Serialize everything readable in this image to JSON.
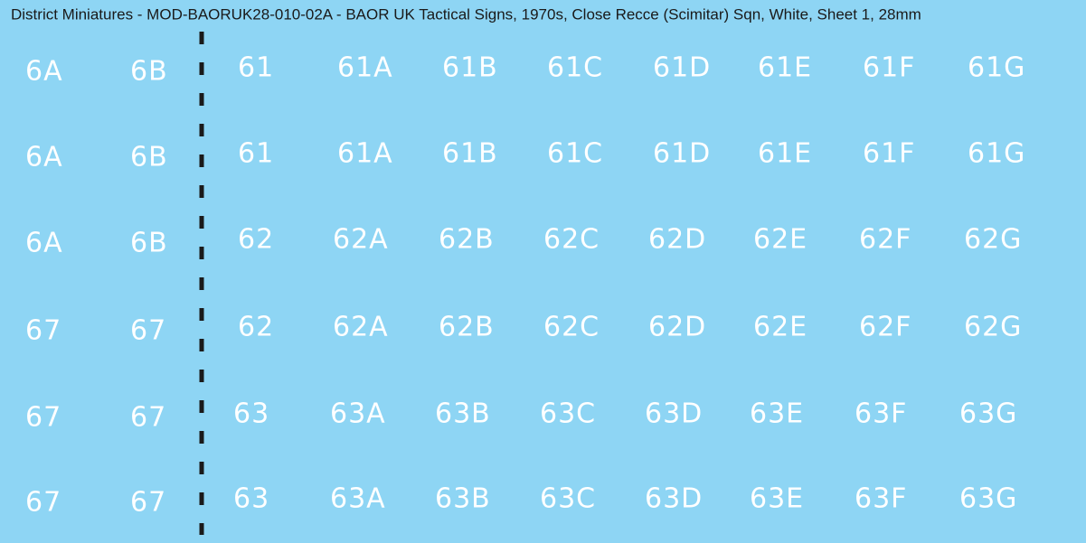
{
  "title": "District Miniatures - MOD-BAORUK28-010-02A - BAOR UK Tactical Signs, 1970s, Close Recce (Scimitar) Sqn, White, Sheet 1, 28mm",
  "left": [
    [
      "6A",
      "6B"
    ],
    [
      "6A",
      "6B"
    ],
    [
      "6A",
      "6B"
    ],
    [
      "67",
      "67"
    ],
    [
      "67",
      "67"
    ],
    [
      "67",
      "67"
    ]
  ],
  "right": [
    [
      "61",
      "61A",
      "61B",
      "61C",
      "61D",
      "61E",
      "61F",
      "61G"
    ],
    [
      "61",
      "61A",
      "61B",
      "61C",
      "61D",
      "61E",
      "61F",
      "61G"
    ],
    [
      "62",
      "62A",
      "62B",
      "62C",
      "62D",
      "62E",
      "62F",
      "62G"
    ],
    [
      "62",
      "62A",
      "62B",
      "62C",
      "62D",
      "62E",
      "62F",
      "62G"
    ],
    [
      "63",
      "63A",
      "63B",
      "63C",
      "63D",
      "63E",
      "63F",
      "63G"
    ],
    [
      "63",
      "63A",
      "63B",
      "63C",
      "63D",
      "63E",
      "63F",
      "63G"
    ]
  ]
}
